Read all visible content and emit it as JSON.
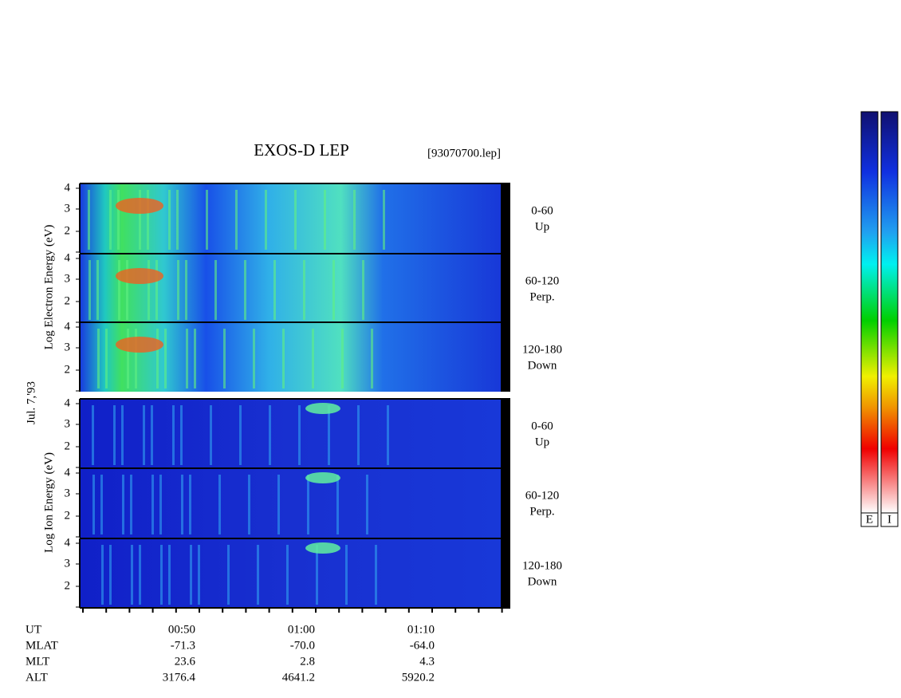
{
  "header": {
    "title": "EXOS-D LEP",
    "file": "[93070700.lep]",
    "date": "Jul. 7,'93"
  },
  "groups": [
    {
      "axis_label": "Log Electron Energy (eV)",
      "panels": [
        {
          "range": "0-60",
          "direction": "Up",
          "ticks": [
            "4",
            "3",
            "2"
          ]
        },
        {
          "range": "60-120",
          "direction": "Perp.",
          "ticks": [
            "4",
            "3",
            "2"
          ]
        },
        {
          "range": "120-180",
          "direction": "Down",
          "ticks": [
            "4",
            "3",
            "2"
          ]
        }
      ]
    },
    {
      "axis_label": "Log Ion Energy (eV)",
      "panels": [
        {
          "range": "0-60",
          "direction": "Up",
          "ticks": [
            "4",
            "3",
            "2"
          ]
        },
        {
          "range": "60-120",
          "direction": "Perp.",
          "ticks": [
            "4",
            "3",
            "2"
          ]
        },
        {
          "range": "120-180",
          "direction": "Down",
          "ticks": [
            "4",
            "3",
            "2"
          ]
        }
      ]
    }
  ],
  "ephemeris": {
    "rows": [
      {
        "label": "UT",
        "values": [
          "00:50",
          "01:00",
          "01:10"
        ]
      },
      {
        "label": "MLAT",
        "values": [
          "-71.3",
          "-70.0",
          "-64.0"
        ]
      },
      {
        "label": "MLT",
        "values": [
          "23.6",
          "2.8",
          "4.3"
        ]
      },
      {
        "label": "ALT",
        "values": [
          "3176.4",
          "4641.2",
          "5920.2"
        ]
      }
    ]
  },
  "colorbars": [
    "E",
    "I"
  ]
}
